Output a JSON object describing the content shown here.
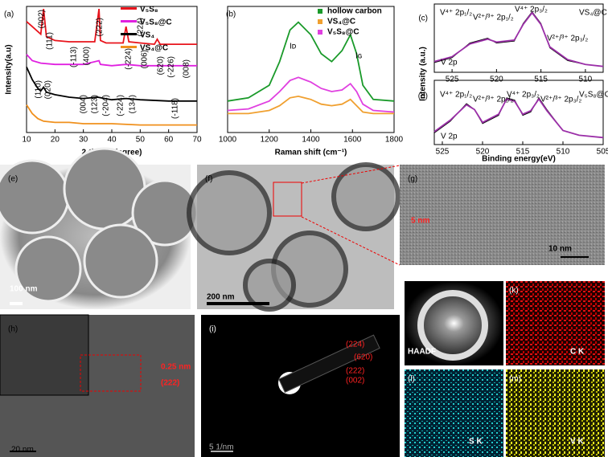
{
  "chart_data": [
    {
      "type": "line",
      "label": "(a)",
      "xlabel": "2-theta (degree)",
      "ylabel": "Intensity(a.u)",
      "xlim": [
        10,
        70
      ],
      "xticks": [
        10,
        20,
        30,
        40,
        50,
        60,
        70
      ],
      "ylim": [
        0,
        100
      ],
      "series": [
        {
          "name": "V₅S₈",
          "color": "#e8141c",
          "x": [
            10,
            12,
            15,
            16,
            17,
            20,
            25,
            30,
            34,
            35.5,
            36,
            38,
            44,
            45,
            46,
            50,
            55,
            56,
            57,
            60,
            65,
            70
          ],
          "values": [
            88,
            84,
            78,
            98,
            76,
            73,
            72,
            72,
            72,
            98,
            73,
            71,
            71,
            84,
            72,
            71,
            70,
            74,
            70,
            70,
            70,
            70
          ]
        },
        {
          "name": "V₅S₈@C",
          "color": "#e020e0",
          "x": [
            10,
            12,
            15,
            20,
            30,
            35.5,
            36,
            40,
            45,
            50,
            60,
            70
          ],
          "values": [
            62,
            57,
            55,
            54,
            54,
            57,
            54,
            53,
            54,
            53,
            53,
            53
          ]
        },
        {
          "name": "VS₄",
          "color": "#000000",
          "x": [
            10,
            12,
            14,
            15,
            16,
            17,
            20,
            25,
            30,
            35,
            40,
            45,
            50,
            60,
            70
          ],
          "values": [
            52,
            42,
            35,
            33,
            36,
            32,
            30,
            28,
            27,
            28,
            26,
            27,
            26,
            25,
            25
          ]
        },
        {
          "name": "VS₄@C",
          "color": "#f0901c",
          "x": [
            10,
            12,
            14,
            16,
            20,
            25,
            30,
            40,
            50,
            60,
            70
          ],
          "values": [
            22,
            15,
            11,
            9,
            8,
            8,
            7,
            7,
            6,
            6,
            6
          ]
        }
      ],
      "annotations": [
        "(002)",
        "(111)",
        "(-113)",
        "(400)",
        "(222)",
        "(-224)",
        "(224)",
        "(006)",
        "(620)",
        "(-226)",
        "(008)",
        "(110)",
        "(020)",
        "(004)",
        "(123)",
        "(-204)",
        "(-224)",
        "(134)",
        "(-118)"
      ]
    },
    {
      "type": "line",
      "label": "(b)",
      "xlabel": "Raman shift (cm⁻¹)",
      "xlim": [
        1000,
        1800
      ],
      "xticks": [
        1000,
        1200,
        1400,
        1600,
        1800
      ],
      "ylim": [
        0,
        80
      ],
      "series": [
        {
          "name": "hollow carbon",
          "color": "#1a9a2a",
          "x": [
            1000,
            1100,
            1200,
            1250,
            1300,
            1340,
            1400,
            1450,
            1500,
            1550,
            1590,
            1620,
            1650,
            1700,
            1800
          ],
          "values": [
            20,
            22,
            30,
            45,
            65,
            70,
            62,
            50,
            45,
            52,
            62,
            50,
            30,
            21,
            20
          ]
        },
        {
          "name": "VS₄@C",
          "color": "#f0a030",
          "x": [
            1000,
            1100,
            1200,
            1250,
            1300,
            1340,
            1400,
            1450,
            1500,
            1550,
            1590,
            1620,
            1650,
            1700,
            1800
          ],
          "values": [
            12,
            12,
            14,
            17,
            22,
            23,
            21,
            18,
            17,
            18,
            21,
            17,
            13,
            12,
            12
          ]
        },
        {
          "name": "V₅S₈@C",
          "color": "#e040e0",
          "x": [
            1000,
            1100,
            1200,
            1250,
            1300,
            1340,
            1400,
            1450,
            1500,
            1550,
            1590,
            1620,
            1650,
            1700,
            1800
          ],
          "values": [
            14,
            15,
            20,
            26,
            33,
            35,
            32,
            28,
            26,
            27,
            31,
            26,
            18,
            14,
            13
          ]
        }
      ],
      "annotations": [
        "Iᴅ",
        "Iɢ"
      ]
    },
    {
      "type": "line",
      "label": "(c)",
      "ylabel": "Intensity (a.u.)",
      "xlim": [
        527,
        508
      ],
      "xticks": [
        525,
        520,
        515,
        510
      ],
      "ylim": [
        30,
        100
      ],
      "series": [
        {
          "color": "#000000",
          "x": [
            527,
            525,
            523,
            521,
            520,
            518,
            517,
            516,
            515,
            514,
            512,
            510,
            508
          ],
          "values": [
            40,
            45,
            60,
            65,
            60,
            62,
            80,
            92,
            80,
            55,
            42,
            38,
            36
          ]
        },
        {
          "color": "#9b2fa8",
          "x": [
            527,
            525,
            523,
            521,
            520,
            518,
            517,
            516,
            515,
            514,
            512,
            510,
            508
          ],
          "values": [
            41,
            46,
            59,
            64,
            61,
            63,
            79,
            91,
            79,
            56,
            43,
            38,
            36
          ]
        }
      ],
      "annotations": [
        "V⁴⁺ 2p₁/₂",
        "V²⁺/³⁺ 2p₁/₂",
        "V⁴⁺ 2p₃/₂",
        "V²⁺/³⁺ 2p₃/₂",
        "VS₄@C",
        "V 2p"
      ]
    },
    {
      "type": "line",
      "label": "(d)",
      "xlabel": "Binding energy(eV)",
      "xlim": [
        526,
        505
      ],
      "xticks": [
        525,
        520,
        515,
        510,
        505
      ],
      "ylim": [
        30,
        85
      ],
      "series": [
        {
          "color": "#000000",
          "x": [
            526,
            524,
            522,
            521,
            520,
            518,
            517,
            516,
            515,
            514,
            513,
            512,
            510,
            508,
            505
          ],
          "values": [
            40,
            50,
            65,
            60,
            48,
            55,
            70,
            68,
            55,
            58,
            70,
            60,
            42,
            38,
            36
          ]
        },
        {
          "color": "#9b2fa8",
          "x": [
            526,
            524,
            522,
            521,
            520,
            518,
            517,
            516,
            515,
            514,
            513,
            512,
            510,
            508,
            505
          ],
          "values": [
            41,
            51,
            64,
            60,
            49,
            56,
            69,
            67,
            56,
            59,
            69,
            59,
            42,
            38,
            36
          ]
        }
      ],
      "annotations": [
        "V⁴⁺ 2p₁/₂",
        "V²⁺/³⁺ 2p₁/₂",
        "V⁴⁺ 2p₃/₂",
        "V²⁺/³⁺ 2p₃/₂",
        "V₅S₈@C",
        "V 2p"
      ]
    }
  ],
  "images": [
    {
      "label": "(e)",
      "texts": [
        "100 nm"
      ]
    },
    {
      "label": "(f)",
      "texts": [
        "200 nm"
      ]
    },
    {
      "label": "(g)",
      "texts": [
        "5 nm",
        "10 nm"
      ]
    },
    {
      "label": "(h)",
      "texts": [
        "0.25 nm",
        "(222)",
        "20 nm"
      ]
    },
    {
      "label": "(i)",
      "texts": [
        "(224)",
        "(620)",
        "(222)",
        "(002)",
        "5 1/nm"
      ]
    },
    {
      "label": "(j)",
      "texts": [
        "HAADF"
      ]
    },
    {
      "label": "(k)",
      "texts": [
        "C K"
      ]
    },
    {
      "label": "(l)",
      "texts": [
        "S K"
      ]
    },
    {
      "label": "(m)",
      "texts": [
        "V K"
      ]
    }
  ]
}
